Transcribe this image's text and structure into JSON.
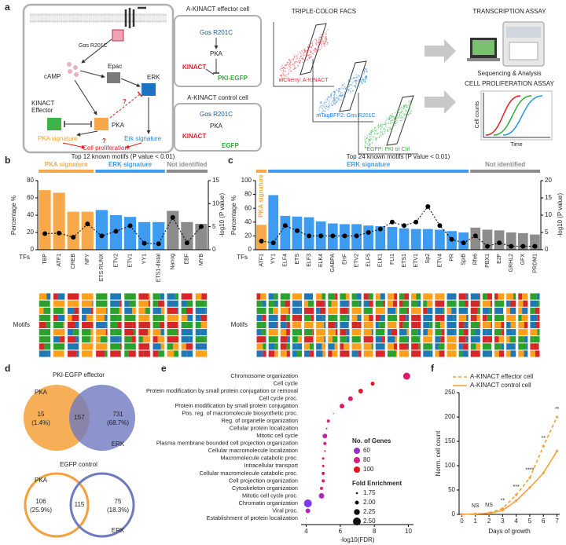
{
  "panel_labels": [
    "a",
    "b",
    "c",
    "d",
    "e",
    "f"
  ],
  "panel_a": {
    "diagram": {
      "gas": "Gαs R201C",
      "camp": "cAMP",
      "epac": "Epac",
      "erk": "ERK",
      "effector_1": "KINACT",
      "effector_2": "Effector",
      "pka": "PKA",
      "question_1": "?",
      "question_2": "?",
      "pka_signature": "PKA signature",
      "erk_signature": "Erk signature",
      "cell_proliferation": "Cell proliferation"
    },
    "effector_cell": {
      "title": "A-KINACT effector cell",
      "gas": "Gαs R201C",
      "pka": "PKA",
      "kinact": "KINACT",
      "reporter": "PKI-EGFP"
    },
    "control_cell": {
      "title": "A-KINACT control cell",
      "gas": "Gαs R201C",
      "pka": "PKA",
      "kinact": "KINACT",
      "reporter": "EGFP"
    },
    "facs": {
      "title": "TRIPLE-COLOR FACS",
      "gates": [
        "mCherry: A-KINACT",
        "mTagBFP2: Gαs R201C",
        "EGFP: PKI or Ctrl"
      ]
    },
    "transcription": {
      "title": "TRANSCRIPTION ASSAY",
      "caption": "Sequencing & Analysis"
    },
    "proliferation": {
      "title": "CELL PROLIFERATION ASSAY",
      "y_label": "Cell counts",
      "x_label": "Time"
    }
  },
  "panel_d": {
    "effector": {
      "title": "PKI-EGFP effector",
      "left_label": "PKA",
      "right_label": "ERK",
      "left_only": 15,
      "left_share": "(1.4%)",
      "overlap": 157,
      "right_only": 731,
      "right_share": "(68.7%)"
    },
    "control": {
      "title": "EGFP control",
      "left_label": "PKA",
      "right_label": "ERK",
      "left_only": 106,
      "left_share": "(25.9%)",
      "overlap": 115,
      "right_only": 75,
      "right_share": "(18.3%)"
    }
  },
  "chart_data": [
    {
      "type": "bar",
      "title": "Top 12 known motifs (P value < 0.01)",
      "x_label": "TFs",
      "y_label": "Percentage %",
      "y2_label": "-log10 (P value)",
      "motifs_label": "Motifs",
      "categories": [
        "TBP",
        "ATF1",
        "CREB",
        "NFY",
        "ETS:RUNX",
        "ETV2",
        "ETV1",
        "YY1",
        "ETS1-distal",
        "Nanog",
        "EBF",
        "MYB"
      ],
      "series": [
        {
          "values": [
            69,
            66,
            44,
            44,
            46,
            40,
            38,
            32,
            32,
            45,
            32,
            30
          ],
          "colors": [
            "#f7a84a",
            "#f7a84a",
            "#f7a84a",
            "#f7a84a",
            "#3d9bf0",
            "#3d9bf0",
            "#3d9bf0",
            "#3d9bf0",
            "#3d9bf0",
            "#8c8c8c",
            "#8c8c8c",
            "#8c8c8c"
          ]
        },
        {
          "axis": "y2",
          "values": [
            3.5,
            3.6,
            2.7,
            5.6,
            3,
            4,
            5.2,
            1.4,
            1.3,
            7,
            1.5,
            5
          ],
          "color": "#000000",
          "line_style": "dashed"
        }
      ],
      "groups": [
        {
          "label": "PKA signature",
          "color": "#f7a84a"
        },
        {
          "label": "ERK signature",
          "color": "#3d9bf0"
        },
        {
          "label": "Not identified",
          "color": "#8c8c8c"
        }
      ],
      "ylim": [
        0,
        80
      ],
      "yticks": [
        0,
        20,
        40,
        60,
        80
      ],
      "y2lim": [
        0,
        15
      ],
      "y2ticks": [
        0,
        5,
        10,
        15
      ]
    },
    {
      "type": "bar",
      "title": "Top 24 known motifs (P value < 0.01)",
      "x_label": "TFs",
      "y_label": "Percentage %",
      "y2_label": "-log10 (P value)",
      "motifs_label": "Motifs",
      "categories": [
        "ATF1",
        "YY1",
        "ELF4",
        "ETS",
        "ELF3",
        "ELK4",
        "GABPA",
        "EHF",
        "ETV2",
        "ELF5",
        "ELK1",
        "FLI1",
        "ETS1",
        "ETV1",
        "Sp2",
        "ETV4",
        "PR",
        "SpiB",
        "Rfx6",
        "PBX1",
        "E2F",
        "GRHL2",
        "GFX",
        "PRDM1"
      ],
      "series": [
        {
          "values": [
            36,
            79,
            49,
            48,
            47,
            41,
            38,
            37,
            37,
            35,
            34,
            33,
            31,
            30,
            30,
            29,
            27,
            25,
            32,
            29,
            28,
            25,
            24,
            22
          ],
          "colors": [
            "#f7a84a",
            "#3d9bf0",
            "#3d9bf0",
            "#3d9bf0",
            "#3d9bf0",
            "#3d9bf0",
            "#3d9bf0",
            "#3d9bf0",
            "#3d9bf0",
            "#3d9bf0",
            "#3d9bf0",
            "#3d9bf0",
            "#3d9bf0",
            "#3d9bf0",
            "#3d9bf0",
            "#3d9bf0",
            "#3d9bf0",
            "#3d9bf0",
            "#8c8c8c",
            "#8c8c8c",
            "#8c8c8c",
            "#8c8c8c",
            "#8c8c8c",
            "#8c8c8c"
          ]
        },
        {
          "axis": "y2",
          "values": [
            2.5,
            2,
            7,
            5.5,
            4,
            4,
            4,
            4,
            4,
            5,
            6,
            8,
            7,
            8,
            12.5,
            7,
            3,
            2,
            4,
            1,
            2,
            1,
            1,
            1
          ],
          "color": "#000000",
          "line_style": "dashed"
        }
      ],
      "groups": [
        {
          "label": "PKA signature",
          "color": "#f7a84a"
        },
        {
          "label": "ERK signature",
          "color": "#3d9bf0"
        },
        {
          "label": "Not identified",
          "color": "#8c8c8c"
        }
      ],
      "ylim": [
        0,
        100
      ],
      "yticks": [
        0,
        20,
        40,
        60,
        80,
        100
      ],
      "y2lim": [
        0,
        20
      ],
      "y2ticks": [
        0,
        5,
        10,
        15,
        20
      ]
    },
    {
      "type": "dot",
      "x_label": "-log10(FDR)",
      "categories": [
        "Chromosome organization",
        "Cell cycle",
        "Protein modification by small protein conjugation or removal",
        "Cell cycle proc.",
        "Protein modification by small protein conjugation",
        "Pos. reg. of macromolecule biosynthetic proc.",
        "Reg. of organelle organization",
        "Cellular protein localization",
        "Mitotic cell cycle",
        "Plasma membrane bounded cell projection organization",
        "Cellular macromolecule localization",
        "Macromolecule catabolic proc.",
        "Intracellular transport",
        "Cellular macromolecule catabolic proc.",
        "Cell projection organization",
        "Cytoskeleton organization",
        "Mitotic cell cycle proc.",
        "Chromatin organization",
        "Viral proc.",
        "Establishment of protein localization"
      ],
      "values": [
        9.9,
        7.9,
        7.2,
        6.6,
        6.1,
        5.6,
        5.3,
        5.2,
        5.1,
        5.1,
        5.1,
        5.0,
        5.0,
        5.0,
        5.0,
        4.9,
        4.9,
        4.1,
        4.1,
        4.0
      ],
      "genes": [
        85,
        100,
        95,
        85,
        85,
        100,
        80,
        95,
        70,
        80,
        95,
        90,
        90,
        85,
        85,
        80,
        65,
        50,
        65,
        100
      ],
      "fold_enrichment": [
        2.4,
        2.0,
        2.1,
        2.1,
        2.1,
        1.6,
        1.9,
        1.7,
        2.1,
        1.9,
        1.7,
        1.8,
        1.8,
        1.9,
        1.9,
        1.9,
        2.2,
        2.5,
        2.1,
        1.55
      ],
      "xlim": [
        3.7,
        10.3
      ],
      "xticks": [
        4,
        6,
        8,
        10
      ],
      "genes_legend": {
        "title": "No. of Genes",
        "entries": [
          {
            "value": 60,
            "color": "#9b30c8"
          },
          {
            "value": 80,
            "color": "#d42080"
          },
          {
            "value": 100,
            "color": "#e8101a"
          }
        ]
      },
      "size_legend": {
        "title": "Fold Enrichment",
        "ticks": [
          1.75,
          {
            "value": 2,
            "label": "2.00"
          },
          2.25,
          {
            "value": 2.5,
            "label": "2.50"
          }
        ]
      }
    },
    {
      "type": "line",
      "x_label": "Days of growth",
      "y_label": "Norm. cell count",
      "x": [
        0,
        1,
        2,
        3,
        4,
        5,
        6,
        7
      ],
      "series": [
        {
          "name": "A-KINACT effector cell",
          "color": "#f5a03a",
          "line_style": "dashed",
          "values": [
            0,
            1,
            3,
            12,
            40,
            75,
            140,
            200
          ]
        },
        {
          "name": "A-KINACT control cell",
          "color": "#f5a03a",
          "line_style": "solid",
          "values": [
            0,
            1,
            2,
            8,
            28,
            55,
            85,
            130
          ]
        }
      ],
      "significance": {
        "x": [
          1,
          2,
          3,
          4,
          5,
          6,
          7
        ],
        "labels": [
          "NS",
          "NS",
          "**",
          "***",
          "****",
          "**",
          "**"
        ]
      },
      "xlim": [
        -0.2,
        7.2
      ],
      "xticks": [
        0,
        1,
        2,
        3,
        4,
        5,
        6,
        7
      ],
      "ylim": [
        0,
        250
      ],
      "yticks": [
        0,
        50,
        100,
        150,
        200,
        250
      ]
    }
  ]
}
